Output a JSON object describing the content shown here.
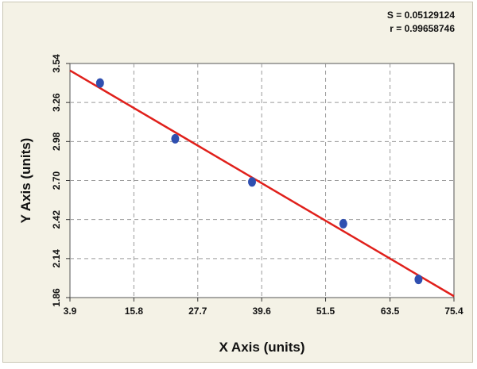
{
  "stats": {
    "s_text": "S = 0.05129124",
    "r_text": "r = 0.99658746"
  },
  "chart_data": {
    "type": "scatter",
    "title": "",
    "xlabel": "X Axis (units)",
    "ylabel": "Y Axis (units)",
    "xlim": [
      3.9,
      75.4
    ],
    "ylim": [
      1.86,
      3.54
    ],
    "x_ticks": [
      "3.9",
      "15.8",
      "27.7",
      "39.6",
      "51.5",
      "63.5",
      "75.4"
    ],
    "y_ticks": [
      "3.54",
      "3.26",
      "2.98",
      "2.70",
      "2.42",
      "2.14",
      "1.86"
    ],
    "x_tick_values": [
      3.9,
      15.8,
      27.7,
      39.6,
      51.5,
      63.5,
      75.4
    ],
    "y_tick_values": [
      3.54,
      3.26,
      2.98,
      2.7,
      2.42,
      2.14,
      1.86
    ],
    "grid": true,
    "series": [
      {
        "points": [
          {
            "x": 9.5,
            "y": 3.4
          },
          {
            "x": 23.5,
            "y": 3.0
          },
          {
            "x": 37.8,
            "y": 2.69
          },
          {
            "x": 54.8,
            "y": 2.39
          },
          {
            "x": 68.8,
            "y": 1.99
          }
        ]
      }
    ],
    "fit_line": {
      "x": [
        3.9,
        75.4
      ],
      "y": [
        3.49,
        1.87
      ]
    },
    "colors": {
      "points": "#2f4fb0",
      "fit_line": "#e0201b",
      "grid": "#9a9a9a",
      "plot_bg": "#ffffff",
      "frame_bg": "#f4f2e6"
    }
  }
}
